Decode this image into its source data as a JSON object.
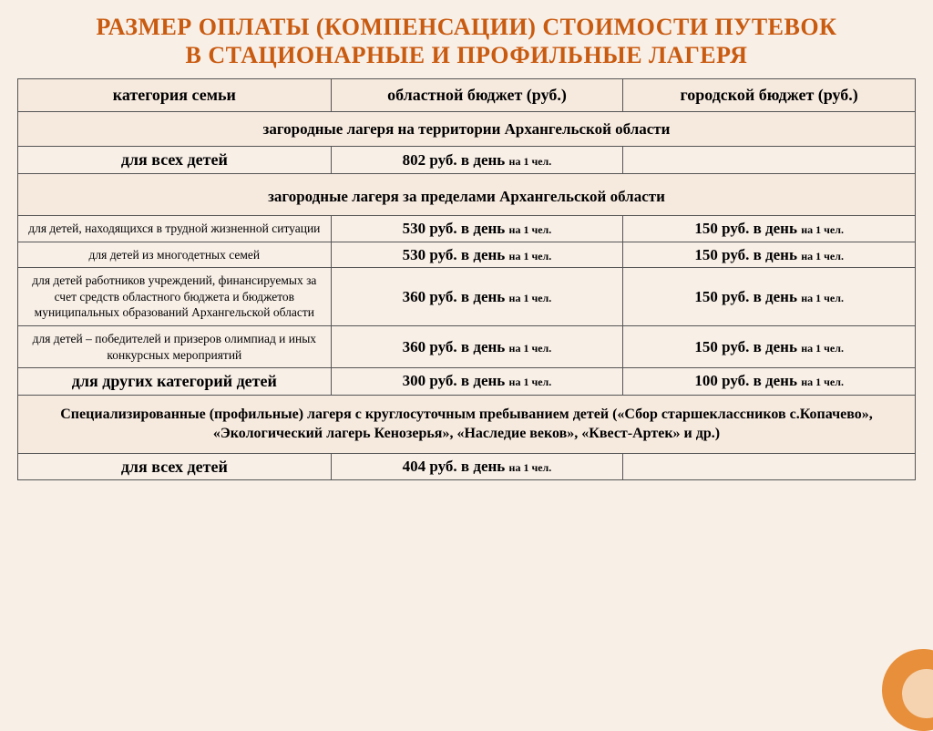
{
  "title_line1": "РАЗМЕР ОПЛАТЫ (КОМПЕНСАЦИИ) СТОИМОСТИ ПУТЕВОК",
  "title_line2": "В СТАЦИОНАРНЫЕ И ПРОФИЛЬНЫЕ ЛАГЕРЯ",
  "headers": {
    "category": "категория семьи",
    "regional": "областной бюджет (руб.)",
    "city": "городской бюджет (руб.)"
  },
  "per": "на 1 чел.",
  "sections": [
    {
      "title": "загородные лагеря на территории Архангельской области",
      "rows": [
        {
          "cat": "для всех детей",
          "cat_style": "bold",
          "regional": "802 руб. в день",
          "city": ""
        }
      ]
    },
    {
      "title": "загородные лагеря за пределами Архангельской области",
      "tall": true,
      "rows": [
        {
          "cat": "для детей, находящихся в трудной жизненной ситуации",
          "cat_style": "small",
          "regional": "530 руб. в день",
          "city": "150 руб. в день"
        },
        {
          "cat": "для детей из многодетных семей",
          "cat_style": "small",
          "regional": "530 руб. в день",
          "city": "150 руб. в день"
        },
        {
          "cat": "для детей работников учреждений, финансируемых за счет средств областного бюджета и бюджетов муниципальных образований Архангельской области",
          "cat_style": "small",
          "regional": "360 руб. в день",
          "city": "150 руб. в день"
        },
        {
          "cat": "для детей – победителей и призеров олимпиад и иных конкурсных мероприятий",
          "cat_style": "small",
          "regional": "360 руб. в день",
          "city": "150 руб. в день"
        },
        {
          "cat": "для других категорий детей",
          "cat_style": "bold",
          "regional": "300 руб. в день",
          "city": "100 руб. в день"
        }
      ]
    },
    {
      "title": "Специализированные (профильные) лагеря с круглосуточным пребыванием детей («Сбор старшеклассников с.Копачево», «Экологический лагерь Кенозерья», «Наследие веков», «Квест-Артек» и др.)",
      "wrap": true,
      "rows": [
        {
          "cat": "для всех детей",
          "cat_style": "bold",
          "regional": "404 руб. в день",
          "city": ""
        }
      ]
    }
  ],
  "colors": {
    "title": "#c95b10",
    "page_bg": "#f8efe7",
    "cell_bg": "#f6e9de",
    "border": "#555555",
    "corner": "#e78f3a"
  }
}
